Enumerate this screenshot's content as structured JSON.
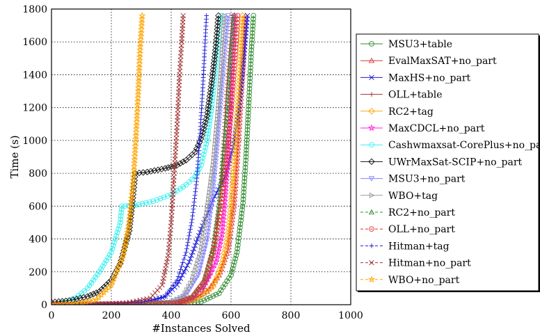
{
  "chart_data": {
    "type": "line",
    "title": "",
    "xlabel": "#Instances Solved",
    "ylabel": "Time (s)",
    "xlim": [
      0,
      1000
    ],
    "ylim": [
      0,
      1800
    ],
    "xticks": [
      "0",
      "200",
      "400",
      "600",
      "800",
      "1000"
    ],
    "yticks": [
      "0",
      "200",
      "400",
      "600",
      "800",
      "1000",
      "1200",
      "1400",
      "1600",
      "1800"
    ],
    "grid": true,
    "legend_position": "right",
    "series": [
      {
        "name": "MSU3+table",
        "color": "#2e8b2e",
        "marker": "circle",
        "dash": "solid",
        "points": [
          [
            0,
            0
          ],
          [
            200,
            2
          ],
          [
            400,
            6
          ],
          [
            500,
            18
          ],
          [
            560,
            70
          ],
          [
            600,
            180
          ],
          [
            620,
            320
          ],
          [
            640,
            620
          ],
          [
            650,
            900
          ],
          [
            660,
            1250
          ],
          [
            668,
            1550
          ],
          [
            675,
            1760
          ]
        ]
      },
      {
        "name": "EvalMaxSAT+no_part",
        "color": "#e03030",
        "marker": "triangle",
        "dash": "solid",
        "points": [
          [
            0,
            0
          ],
          [
            200,
            2
          ],
          [
            400,
            8
          ],
          [
            460,
            25
          ],
          [
            520,
            80
          ],
          [
            560,
            180
          ],
          [
            590,
            330
          ],
          [
            610,
            600
          ],
          [
            620,
            850
          ],
          [
            630,
            1150
          ],
          [
            640,
            1450
          ],
          [
            648,
            1760
          ]
        ]
      },
      {
        "name": "MaxHS+no_part",
        "color": "#1a1ad6",
        "marker": "x",
        "dash": "solid",
        "points": [
          [
            0,
            0
          ],
          [
            150,
            3
          ],
          [
            250,
            8
          ],
          [
            330,
            20
          ],
          [
            380,
            50
          ],
          [
            420,
            120
          ],
          [
            460,
            260
          ],
          [
            500,
            460
          ],
          [
            540,
            640
          ],
          [
            580,
            780
          ],
          [
            610,
            980
          ],
          [
            630,
            1250
          ],
          [
            645,
            1550
          ],
          [
            655,
            1760
          ]
        ]
      },
      {
        "name": "OLL+table",
        "color": "#a03030",
        "marker": "plus",
        "dash": "solid",
        "points": [
          [
            0,
            0
          ],
          [
            300,
            5
          ],
          [
            450,
            15
          ],
          [
            500,
            60
          ],
          [
            530,
            180
          ],
          [
            550,
            420
          ],
          [
            565,
            700
          ],
          [
            575,
            1000
          ],
          [
            585,
            1300
          ],
          [
            595,
            1560
          ],
          [
            605,
            1760
          ]
        ]
      },
      {
        "name": "RC2+tag",
        "color": "#ffa500",
        "marker": "diamond",
        "dash": "solid",
        "points": [
          [
            0,
            0
          ],
          [
            300,
            3
          ],
          [
            420,
            10
          ],
          [
            480,
            30
          ],
          [
            540,
            110
          ],
          [
            570,
            250
          ],
          [
            590,
            420
          ],
          [
            600,
            600
          ],
          [
            610,
            850
          ],
          [
            620,
            1150
          ],
          [
            630,
            1450
          ],
          [
            638,
            1760
          ]
        ]
      },
      {
        "name": "MaxCDCL+no_part",
        "color": "#ff1fd2",
        "marker": "star",
        "dash": "solid",
        "points": [
          [
            0,
            0
          ],
          [
            300,
            3
          ],
          [
            420,
            8
          ],
          [
            470,
            40
          ],
          [
            510,
            120
          ],
          [
            550,
            260
          ],
          [
            570,
            430
          ],
          [
            580,
            650
          ],
          [
            590,
            900
          ],
          [
            598,
            1200
          ],
          [
            605,
            1500
          ],
          [
            612,
            1760
          ]
        ]
      },
      {
        "name": "Cashwmaxsat-CorePlus+no_part",
        "color": "#33f0f0",
        "marker": "circle",
        "dash": "solid",
        "points": [
          [
            0,
            0
          ],
          [
            40,
            15
          ],
          [
            80,
            40
          ],
          [
            120,
            100
          ],
          [
            160,
            200
          ],
          [
            200,
            320
          ],
          [
            230,
            500
          ],
          [
            235,
            600
          ],
          [
            280,
            605
          ],
          [
            340,
            630
          ],
          [
            400,
            670
          ],
          [
            450,
            730
          ],
          [
            480,
            780
          ],
          [
            500,
            850
          ],
          [
            520,
            1000
          ],
          [
            535,
            1200
          ],
          [
            550,
            1450
          ],
          [
            560,
            1650
          ],
          [
            568,
            1760
          ]
        ]
      },
      {
        "name": "UWrMaxSat-SCIP+no_part",
        "color": "#111111",
        "marker": "diamond",
        "dash": "solid",
        "points": [
          [
            0,
            15
          ],
          [
            60,
            25
          ],
          [
            120,
            50
          ],
          [
            160,
            80
          ],
          [
            200,
            150
          ],
          [
            230,
            250
          ],
          [
            260,
            450
          ],
          [
            272,
            650
          ],
          [
            280,
            800
          ],
          [
            320,
            808
          ],
          [
            380,
            830
          ],
          [
            420,
            850
          ],
          [
            450,
            880
          ],
          [
            480,
            930
          ],
          [
            500,
            1010
          ],
          [
            520,
            1150
          ],
          [
            535,
            1350
          ],
          [
            548,
            1550
          ],
          [
            558,
            1760
          ]
        ]
      },
      {
        "name": "MSU3+no_part",
        "color": "#8080ff",
        "marker": "triangle-down",
        "dash": "solid",
        "points": [
          [
            0,
            0
          ],
          [
            300,
            5
          ],
          [
            400,
            15
          ],
          [
            450,
            60
          ],
          [
            490,
            180
          ],
          [
            520,
            400
          ],
          [
            540,
            700
          ],
          [
            555,
            1000
          ],
          [
            568,
            1300
          ],
          [
            580,
            1580
          ],
          [
            590,
            1760
          ]
        ]
      },
      {
        "name": "WBO+tag",
        "color": "#999999",
        "marker": "triangle-right",
        "dash": "solid",
        "points": [
          [
            0,
            0
          ],
          [
            300,
            5
          ],
          [
            400,
            15
          ],
          [
            440,
            50
          ],
          [
            470,
            150
          ],
          [
            500,
            330
          ],
          [
            520,
            580
          ],
          [
            540,
            850
          ],
          [
            555,
            1150
          ],
          [
            568,
            1450
          ],
          [
            578,
            1760
          ]
        ]
      },
      {
        "name": "RC2+no_part",
        "color": "#2e8b2e",
        "marker": "triangle",
        "dash": "dashed",
        "points": [
          [
            0,
            0
          ],
          [
            300,
            4
          ],
          [
            420,
            12
          ],
          [
            470,
            50
          ],
          [
            510,
            150
          ],
          [
            540,
            350
          ],
          [
            560,
            600
          ],
          [
            575,
            900
          ],
          [
            590,
            1200
          ],
          [
            600,
            1500
          ],
          [
            610,
            1760
          ]
        ]
      },
      {
        "name": "OLL+no_part",
        "color": "#e03030",
        "marker": "circle",
        "dash": "dashed",
        "points": [
          [
            0,
            0
          ],
          [
            300,
            4
          ],
          [
            420,
            12
          ],
          [
            470,
            45
          ],
          [
            510,
            140
          ],
          [
            540,
            320
          ],
          [
            565,
            580
          ],
          [
            585,
            880
          ],
          [
            600,
            1180
          ],
          [
            612,
            1480
          ],
          [
            622,
            1760
          ]
        ]
      },
      {
        "name": "Hitman+tag",
        "color": "#1a1ad6",
        "marker": "plus",
        "dash": "dashed",
        "points": [
          [
            0,
            0
          ],
          [
            200,
            5
          ],
          [
            300,
            15
          ],
          [
            380,
            50
          ],
          [
            420,
            150
          ],
          [
            450,
            320
          ],
          [
            470,
            520
          ],
          [
            485,
            750
          ],
          [
            495,
            1000
          ],
          [
            505,
            1300
          ],
          [
            512,
            1550
          ],
          [
            518,
            1760
          ]
        ]
      },
      {
        "name": "Hitman+no_part",
        "color": "#a03030",
        "marker": "x",
        "dash": "dashed",
        "points": [
          [
            0,
            0
          ],
          [
            150,
            3
          ],
          [
            250,
            10
          ],
          [
            330,
            40
          ],
          [
            370,
            120
          ],
          [
            390,
            300
          ],
          [
            400,
            500
          ],
          [
            410,
            800
          ],
          [
            420,
            1100
          ],
          [
            428,
            1400
          ],
          [
            435,
            1600
          ],
          [
            440,
            1760
          ]
        ]
      },
      {
        "name": "WBO+no_part",
        "color": "#ffa500",
        "marker": "star",
        "dash": "dashed",
        "points": [
          [
            0,
            0
          ],
          [
            80,
            5
          ],
          [
            150,
            30
          ],
          [
            200,
            120
          ],
          [
            240,
            300
          ],
          [
            260,
            500
          ],
          [
            275,
            800
          ],
          [
            283,
            1050
          ],
          [
            290,
            1300
          ],
          [
            296,
            1550
          ],
          [
            303,
            1760
          ]
        ]
      }
    ]
  }
}
